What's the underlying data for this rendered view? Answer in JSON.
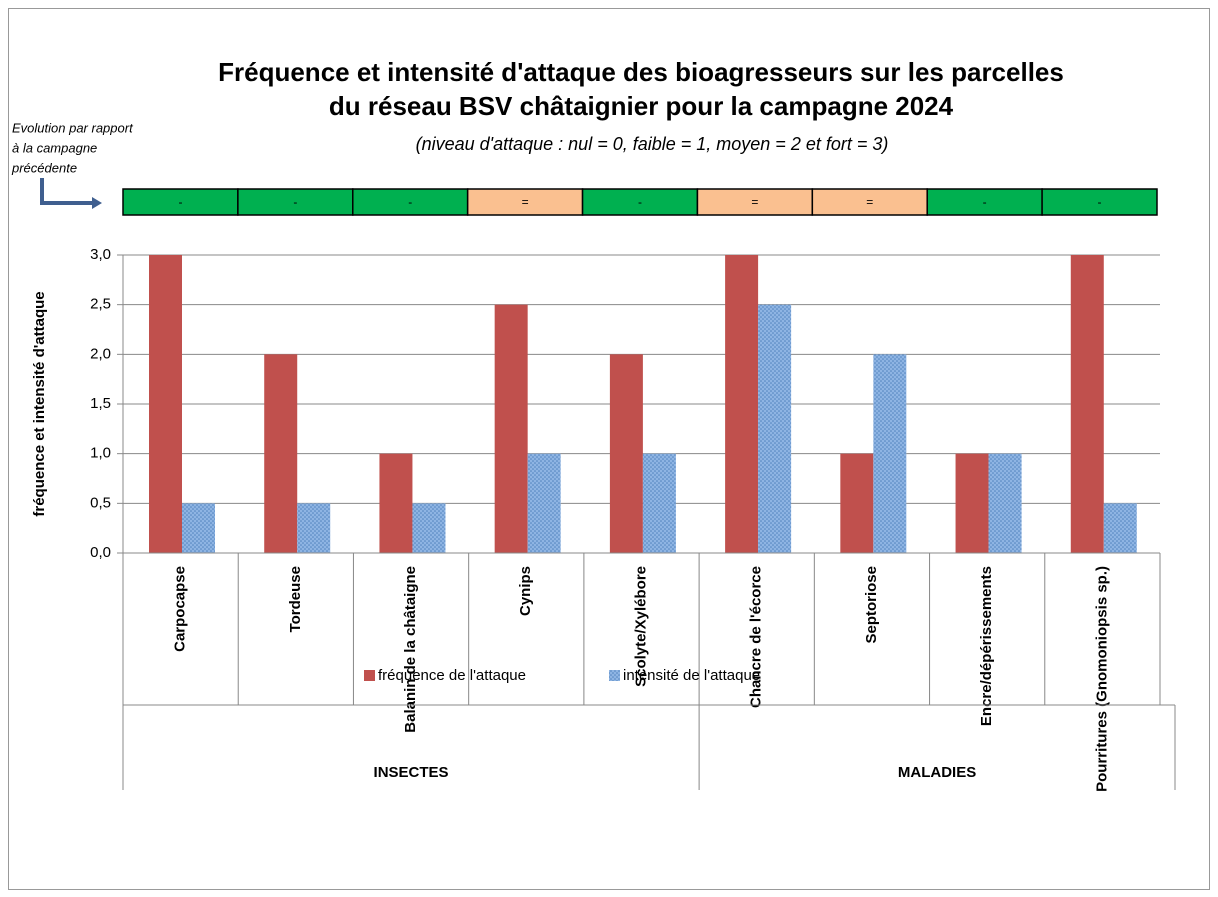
{
  "chart_data": {
    "type": "bar",
    "title": [
      "Fréquence et intensité d'attaque des bioagresseurs sur les parcelles",
      "du réseau BSV châtaignier pour la campagne 2024"
    ],
    "subtitle": "(niveau d'attaque : nul = 0, faible = 1, moyen = 2 et fort = 3)",
    "ylabel": "fréquence et intensité d'attaque",
    "categories": [
      "Carpocapse",
      "Tordeuse",
      "Balanin de la châtaigne",
      "Cynips",
      "Scolyte/Xylébore",
      "Chancre de l'écorce",
      "Septoriose",
      "Encre/dépérissements",
      "Pourritures (Gnomoniopsis sp.)"
    ],
    "groups": [
      {
        "name": "INSECTES",
        "count": 5
      },
      {
        "name": "MALADIES",
        "count": 4
      }
    ],
    "series": [
      {
        "name": "fréquence de l'attaque",
        "color": "#c0504d",
        "values": [
          3,
          2,
          1,
          2.5,
          2,
          3,
          1,
          1,
          3
        ]
      },
      {
        "name": "intensité de l'attaque",
        "color": "#8eb4e3",
        "values": [
          0.5,
          0.5,
          0.5,
          1,
          1,
          2.5,
          2,
          1,
          0.5
        ]
      }
    ],
    "ylim": [
      0,
      3
    ],
    "yticks": [
      {
        "value": 0,
        "label": "0,0"
      },
      {
        "value": 0.5,
        "label": "0,5"
      },
      {
        "value": 1,
        "label": "1,0"
      },
      {
        "value": 1.5,
        "label": "1,5"
      },
      {
        "value": 2,
        "label": "2,0"
      },
      {
        "value": 2.5,
        "label": "2,5"
      },
      {
        "value": 3,
        "label": "3,0"
      }
    ],
    "grid": true,
    "evolution": {
      "note": [
        "Evolution par rapport",
        "à la campagne",
        "précédente"
      ],
      "labels": [
        "-",
        "-",
        "-",
        "=",
        "-",
        "=",
        "=",
        "-",
        "-"
      ],
      "colors": [
        "#00b050",
        "#00b050",
        "#00b050",
        "#fac090",
        "#00b050",
        "#fac090",
        "#fac090",
        "#00b050",
        "#00b050"
      ]
    }
  }
}
